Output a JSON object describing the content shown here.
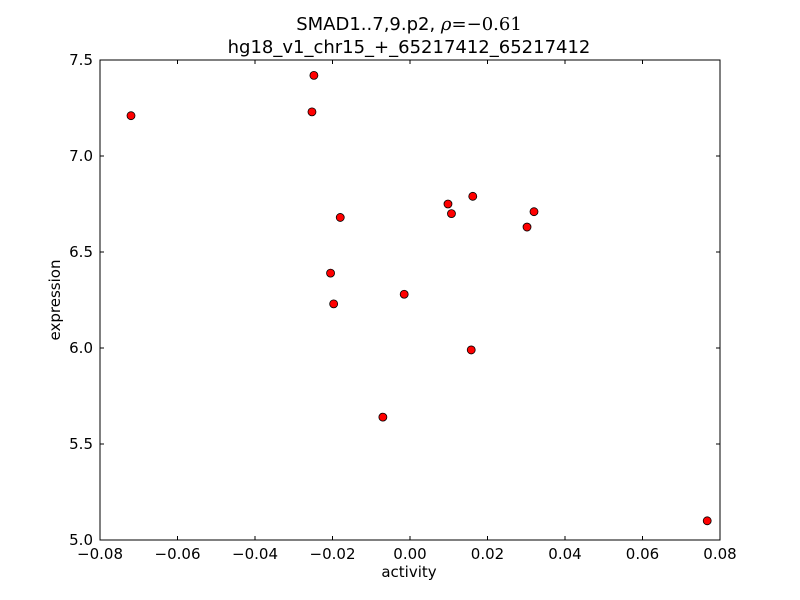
{
  "chart_data": {
    "type": "scatter",
    "title": {
      "line1_prefix": "SMAD1..7,9.p2, ",
      "rho_symbol": "ρ",
      "rho_equals": "=",
      "rho_value": "−0.61",
      "line2": "hg18_v1_chr15_+_65217412_65217412"
    },
    "xlabel": "activity",
    "ylabel": "expression",
    "xlim": [
      -0.08,
      0.08
    ],
    "ylim": [
      5.0,
      7.5
    ],
    "x_ticks": [
      -0.08,
      -0.06,
      -0.04,
      -0.02,
      0.0,
      0.02,
      0.04,
      0.06,
      0.08
    ],
    "x_tick_labels": [
      "−0.08",
      "−0.06",
      "−0.04",
      "−0.02",
      "0.00",
      "0.02",
      "0.04",
      "0.06",
      "0.08"
    ],
    "y_ticks": [
      5.0,
      5.5,
      6.0,
      6.5,
      7.0,
      7.5
    ],
    "y_tick_labels": [
      "5.0",
      "5.5",
      "6.0",
      "6.5",
      "7.0",
      "7.5"
    ],
    "grid": false,
    "legend": "none",
    "marker_color": "#ff0000",
    "marker_edge_color": "#000000",
    "points": [
      {
        "x": -0.072,
        "y": 7.21
      },
      {
        "x": -0.0248,
        "y": 7.42
      },
      {
        "x": -0.0253,
        "y": 7.23
      },
      {
        "x": -0.018,
        "y": 6.68
      },
      {
        "x": -0.0205,
        "y": 6.39
      },
      {
        "x": -0.0197,
        "y": 6.23
      },
      {
        "x": -0.007,
        "y": 5.64
      },
      {
        "x": -0.0015,
        "y": 6.28
      },
      {
        "x": 0.0098,
        "y": 6.75
      },
      {
        "x": 0.0107,
        "y": 6.7
      },
      {
        "x": 0.0162,
        "y": 6.79
      },
      {
        "x": 0.0158,
        "y": 5.99
      },
      {
        "x": 0.0302,
        "y": 6.63
      },
      {
        "x": 0.032,
        "y": 6.71
      },
      {
        "x": 0.0767,
        "y": 5.1
      }
    ]
  }
}
